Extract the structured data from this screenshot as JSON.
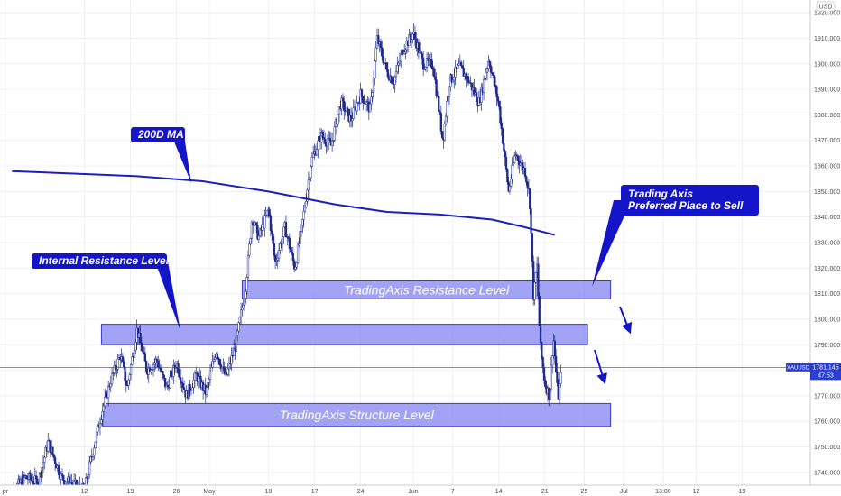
{
  "chart_data": {
    "type": "candlestick",
    "symbol": "XAUUSD",
    "currency": "USD",
    "last_price": "1781.145",
    "countdown": "47:53",
    "ylim": [
      1735,
      1925
    ],
    "y_ticks": [
      1740,
      1750,
      1760,
      1770,
      1780,
      1790,
      1800,
      1810,
      1820,
      1830,
      1840,
      1850,
      1860,
      1870,
      1880,
      1890,
      1900,
      1910,
      1920
    ],
    "x_ticks": [
      {
        "label": "pr",
        "t": 0
      },
      {
        "label": "12",
        "t": 12
      },
      {
        "label": "19",
        "t": 19
      },
      {
        "label": "26",
        "t": 26
      },
      {
        "label": "May",
        "t": 31
      },
      {
        "label": "10",
        "t": 40
      },
      {
        "label": "17",
        "t": 47
      },
      {
        "label": "24",
        "t": 54
      },
      {
        "label": "Jun",
        "t": 62
      },
      {
        "label": "7",
        "t": 68
      },
      {
        "label": "14",
        "t": 75
      },
      {
        "label": "21",
        "t": 82
      },
      {
        "label": "25",
        "t": 88
      },
      {
        "label": "Jul",
        "t": 94
      },
      {
        "label": "13:00",
        "t": 100
      },
      {
        "label": "12",
        "t": 105
      },
      {
        "label": "19",
        "t": 112
      }
    ],
    "xlim": [
      0,
      121
    ],
    "price_path": [
      {
        "t": 0,
        "p": 1730
      },
      {
        "t": 3,
        "p": 1738
      },
      {
        "t": 5,
        "p": 1736
      },
      {
        "t": 6.5,
        "p": 1752
      },
      {
        "t": 8.5,
        "p": 1738
      },
      {
        "t": 10.5,
        "p": 1735
      },
      {
        "t": 12,
        "p": 1733
      },
      {
        "t": 13,
        "p": 1745
      },
      {
        "t": 14.5,
        "p": 1762
      },
      {
        "t": 16,
        "p": 1776
      },
      {
        "t": 17.5,
        "p": 1786
      },
      {
        "t": 18.5,
        "p": 1773
      },
      {
        "t": 20,
        "p": 1796
      },
      {
        "t": 21.5,
        "p": 1780
      },
      {
        "t": 23,
        "p": 1784
      },
      {
        "t": 24.5,
        "p": 1773
      },
      {
        "t": 26,
        "p": 1783
      },
      {
        "t": 27.5,
        "p": 1770
      },
      {
        "t": 29,
        "p": 1778
      },
      {
        "t": 30.5,
        "p": 1771
      },
      {
        "t": 32,
        "p": 1788
      },
      {
        "t": 33.5,
        "p": 1777
      },
      {
        "t": 35,
        "p": 1790
      },
      {
        "t": 36.5,
        "p": 1812
      },
      {
        "t": 37.5,
        "p": 1840
      },
      {
        "t": 38.5,
        "p": 1832
      },
      {
        "t": 40,
        "p": 1843
      },
      {
        "t": 41,
        "p": 1822
      },
      {
        "t": 42.5,
        "p": 1836
      },
      {
        "t": 44,
        "p": 1820
      },
      {
        "t": 45,
        "p": 1835
      },
      {
        "t": 46.5,
        "p": 1862
      },
      {
        "t": 48,
        "p": 1872
      },
      {
        "t": 49.5,
        "p": 1868
      },
      {
        "t": 51,
        "p": 1885
      },
      {
        "t": 52.5,
        "p": 1878
      },
      {
        "t": 54,
        "p": 1888
      },
      {
        "t": 55.5,
        "p": 1882
      },
      {
        "t": 56.5,
        "p": 1910
      },
      {
        "t": 58,
        "p": 1897
      },
      {
        "t": 59,
        "p": 1893
      },
      {
        "t": 60.5,
        "p": 1906
      },
      {
        "t": 62,
        "p": 1912
      },
      {
        "t": 63.5,
        "p": 1900
      },
      {
        "t": 65,
        "p": 1900
      },
      {
        "t": 66.5,
        "p": 1870
      },
      {
        "t": 67.5,
        "p": 1893
      },
      {
        "t": 69,
        "p": 1899
      },
      {
        "t": 70.5,
        "p": 1893
      },
      {
        "t": 72,
        "p": 1885
      },
      {
        "t": 73.5,
        "p": 1902
      },
      {
        "t": 75,
        "p": 1884
      },
      {
        "t": 76.5,
        "p": 1850
      },
      {
        "t": 77.5,
        "p": 1865
      },
      {
        "t": 79,
        "p": 1858
      },
      {
        "t": 79.7,
        "p": 1848
      },
      {
        "t": 80.3,
        "p": 1808
      },
      {
        "t": 80.8,
        "p": 1822
      },
      {
        "t": 81.3,
        "p": 1790
      },
      {
        "t": 82,
        "p": 1775
      },
      {
        "t": 82.7,
        "p": 1770
      },
      {
        "t": 83.3,
        "p": 1793
      },
      {
        "t": 84,
        "p": 1769
      },
      {
        "t": 84.6,
        "p": 1781
      }
    ],
    "ma_200d": [
      {
        "t": 1,
        "p": 1858
      },
      {
        "t": 20,
        "p": 1856
      },
      {
        "t": 30,
        "p": 1854
      },
      {
        "t": 40,
        "p": 1850
      },
      {
        "t": 50,
        "p": 1845
      },
      {
        "t": 58,
        "p": 1842
      },
      {
        "t": 66,
        "p": 1841
      },
      {
        "t": 74,
        "p": 1839
      },
      {
        "t": 79,
        "p": 1836
      },
      {
        "t": 83.5,
        "p": 1833
      }
    ],
    "zones": [
      {
        "name": "resistance",
        "label": "TradingAxis Resistance Level",
        "t0": 36,
        "t1": 92,
        "p_low": 1808,
        "p_high": 1815
      },
      {
        "name": "internal",
        "label": "",
        "t0": 14.6,
        "t1": 88.5,
        "p_low": 1790,
        "p_high": 1798
      },
      {
        "name": "structure",
        "label": "TradingAxis Structure Level",
        "t0": 14.8,
        "t1": 92,
        "p_low": 1758,
        "p_high": 1767
      }
    ],
    "annotations": [
      {
        "name": "ma-callout",
        "lines": [
          "200D MA"
        ]
      },
      {
        "name": "internal-callout",
        "lines": [
          "Internal Resistance Level"
        ]
      },
      {
        "name": "sell-callout",
        "lines": [
          "Trading Axis",
          "Preferred Place to Sell"
        ]
      }
    ],
    "colors": {
      "up": "#1e2a8c",
      "down": "#1e2a8c",
      "zone_fill": "#8c8cf2",
      "zone_border": "#3a3acb",
      "ma": "#1a1fbf",
      "callout_fill": "#1414c8",
      "grid": "#eef0f4",
      "price_tag": "#2a3fd0"
    }
  }
}
